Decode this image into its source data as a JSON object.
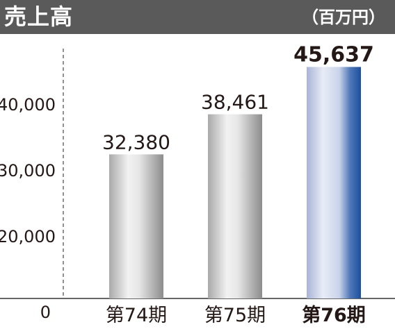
{
  "header": {
    "title": "売上高",
    "unit": "（百万円）"
  },
  "chart_data": {
    "type": "bar",
    "title": "売上高",
    "unit": "（百万円）",
    "categories": [
      "第74期",
      "第75期",
      "第76期"
    ],
    "values": [
      32380,
      38461,
      45637
    ],
    "value_labels": [
      "32,380",
      "38,461",
      "45,637"
    ],
    "highlight_index": 2,
    "y_ticks": [
      {
        "value": 0,
        "label": "0"
      },
      {
        "value": 20000,
        "label": "20,000"
      },
      {
        "value": 30000,
        "label": "30,000"
      },
      {
        "value": 40000,
        "label": "40,000"
      }
    ],
    "ylim": [
      0,
      48000
    ],
    "axis_break": true,
    "grid": false,
    "colors": {
      "header_bg": "#5a5a5a",
      "bar_gray_light": "#f2f2f2",
      "bar_gray_dark": "#8c8c8c",
      "bar_highlight_light": "#e8ecf6",
      "bar_highlight_dark": "#1c4f9c",
      "text": "#231815"
    }
  }
}
